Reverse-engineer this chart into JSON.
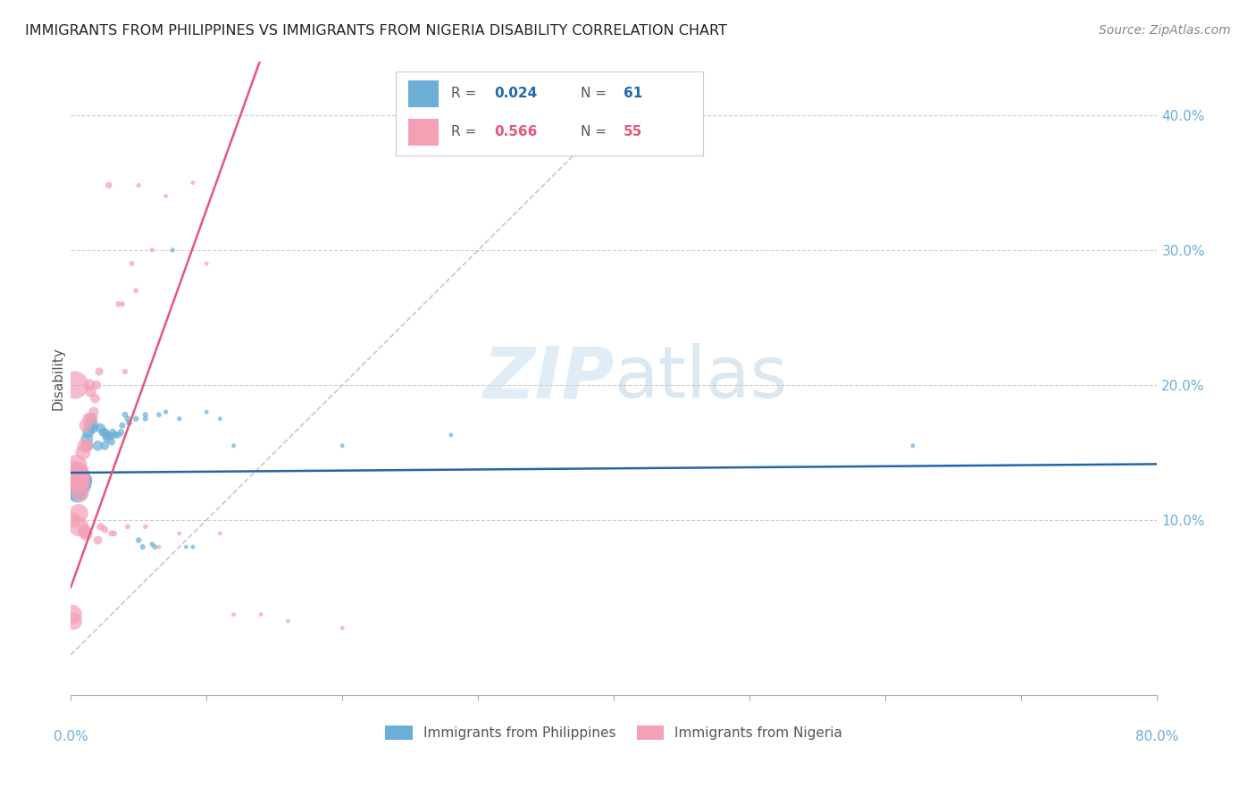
{
  "title": "IMMIGRANTS FROM PHILIPPINES VS IMMIGRANTS FROM NIGERIA DISABILITY CORRELATION CHART",
  "source": "Source: ZipAtlas.com",
  "ylabel": "Disability",
  "xlim": [
    0.0,
    0.8
  ],
  "ylim": [
    -0.03,
    0.44
  ],
  "color_philippines": "#6baed6",
  "color_nigeria": "#f4a0b5",
  "color_philippines_line": "#2166ac",
  "color_nigeria_line": "#e8567a",
  "color_diagonal": "#bbbbbb",
  "watermark_zip": "ZIP",
  "watermark_atlas": "atlas",
  "philippines_x": [
    0.003,
    0.003,
    0.004,
    0.005,
    0.005,
    0.006,
    0.006,
    0.007,
    0.007,
    0.008,
    0.008,
    0.009,
    0.009,
    0.01,
    0.01,
    0.011,
    0.011,
    0.012,
    0.012,
    0.013,
    0.014,
    0.015,
    0.016,
    0.017,
    0.02,
    0.022,
    0.024,
    0.025,
    0.025,
    0.026,
    0.027,
    0.028,
    0.03,
    0.03,
    0.031,
    0.033,
    0.035,
    0.037,
    0.038,
    0.04,
    0.042,
    0.043,
    0.048,
    0.05,
    0.053,
    0.055,
    0.055,
    0.06,
    0.062,
    0.065,
    0.07,
    0.075,
    0.08,
    0.085,
    0.09,
    0.1,
    0.11,
    0.12,
    0.2,
    0.28,
    0.62
  ],
  "philippines_y": [
    0.13,
    0.125,
    0.128,
    0.132,
    0.12,
    0.135,
    0.125,
    0.128,
    0.13,
    0.133,
    0.125,
    0.128,
    0.13,
    0.13,
    0.125,
    0.128,
    0.13,
    0.155,
    0.16,
    0.165,
    0.17,
    0.175,
    0.168,
    0.17,
    0.155,
    0.168,
    0.165,
    0.165,
    0.155,
    0.162,
    0.16,
    0.163,
    0.162,
    0.158,
    0.165,
    0.163,
    0.163,
    0.165,
    0.17,
    0.178,
    0.175,
    0.172,
    0.175,
    0.085,
    0.08,
    0.175,
    0.178,
    0.082,
    0.08,
    0.178,
    0.18,
    0.3,
    0.175,
    0.08,
    0.08,
    0.18,
    0.175,
    0.155,
    0.155,
    0.163,
    0.155
  ],
  "nigeria_x": [
    0.001,
    0.002,
    0.002,
    0.003,
    0.003,
    0.004,
    0.004,
    0.005,
    0.005,
    0.006,
    0.006,
    0.007,
    0.007,
    0.008,
    0.008,
    0.009,
    0.009,
    0.01,
    0.01,
    0.011,
    0.011,
    0.012,
    0.013,
    0.014,
    0.015,
    0.016,
    0.017,
    0.018,
    0.019,
    0.02,
    0.021,
    0.022,
    0.025,
    0.028,
    0.03,
    0.032,
    0.035,
    0.038,
    0.04,
    0.042,
    0.045,
    0.048,
    0.05,
    0.055,
    0.06,
    0.065,
    0.07,
    0.08,
    0.09,
    0.1,
    0.11,
    0.12,
    0.14,
    0.16,
    0.2
  ],
  "nigeria_y": [
    0.03,
    0.025,
    0.1,
    0.13,
    0.2,
    0.135,
    0.14,
    0.13,
    0.135,
    0.095,
    0.105,
    0.12,
    0.125,
    0.132,
    0.135,
    0.15,
    0.128,
    0.155,
    0.092,
    0.09,
    0.17,
    0.155,
    0.175,
    0.2,
    0.195,
    0.175,
    0.18,
    0.19,
    0.2,
    0.085,
    0.21,
    0.095,
    0.093,
    0.348,
    0.09,
    0.09,
    0.26,
    0.26,
    0.21,
    0.095,
    0.29,
    0.27,
    0.348,
    0.095,
    0.3,
    0.08,
    0.34,
    0.09,
    0.35,
    0.29,
    0.09,
    0.03,
    0.03,
    0.025,
    0.02
  ],
  "philippines_bubble_sizes": [
    200,
    200,
    150,
    100,
    100,
    80,
    80,
    70,
    70,
    60,
    60,
    55,
    55,
    50,
    50,
    45,
    45,
    40,
    40,
    38,
    35,
    35,
    30,
    30,
    28,
    25,
    22,
    20,
    20,
    18,
    18,
    16,
    15,
    15,
    14,
    13,
    12,
    12,
    11,
    10,
    10,
    10,
    9,
    9,
    8,
    8,
    8,
    7,
    7,
    7,
    6,
    6,
    6,
    5,
    5,
    5,
    5,
    5,
    5,
    5,
    5
  ],
  "nigeria_bubble_sizes": [
    100,
    80,
    60,
    200,
    200,
    150,
    130,
    120,
    110,
    100,
    90,
    80,
    75,
    70,
    65,
    60,
    55,
    50,
    50,
    50,
    45,
    40,
    38,
    35,
    32,
    30,
    28,
    25,
    22,
    20,
    18,
    16,
    14,
    12,
    10,
    9,
    9,
    8,
    8,
    7,
    7,
    7,
    6,
    6,
    6,
    5,
    5,
    5,
    5,
    5,
    5,
    5,
    5,
    5,
    5
  ],
  "phil_line_slope": 0.008,
  "phil_line_intercept": 0.135,
  "nig_line_slope": 2.8,
  "nig_line_intercept": 0.05,
  "ytick_vals": [
    0.1,
    0.2,
    0.3,
    0.4
  ],
  "ytick_labels": [
    "10.0%",
    "20.0%",
    "30.0%",
    "40.0%"
  ],
  "xtick_vals": [
    0.0,
    0.1,
    0.2,
    0.3,
    0.4,
    0.5,
    0.6,
    0.7,
    0.8
  ]
}
